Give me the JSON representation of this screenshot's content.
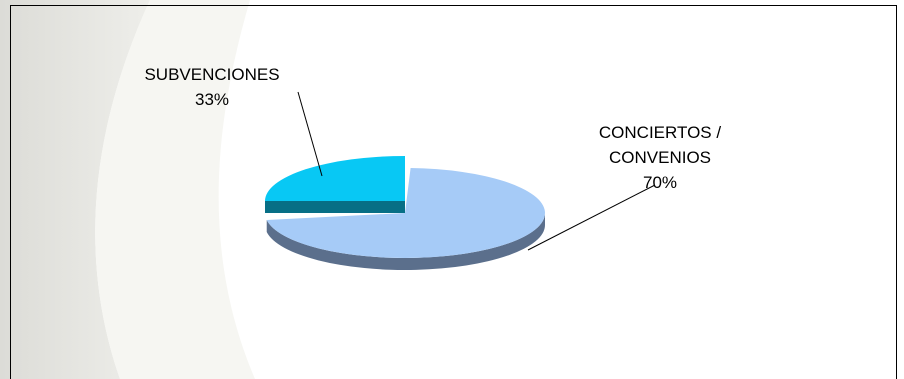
{
  "chart_data": {
    "type": "pie",
    "slices": [
      {
        "label_lines": [
          "CONCIERTOS /",
          "CONVENIOS"
        ],
        "percent_label": "70%",
        "value": 70,
        "color": "#a6cbf7",
        "side": "#5b6f8c"
      },
      {
        "label_lines": [
          "SUBVENCIONES"
        ],
        "percent_label": "33%",
        "value": 33,
        "color": "#08c8f4",
        "side": "#076f86"
      }
    ],
    "legend": "none",
    "style": "3d-exploded"
  }
}
